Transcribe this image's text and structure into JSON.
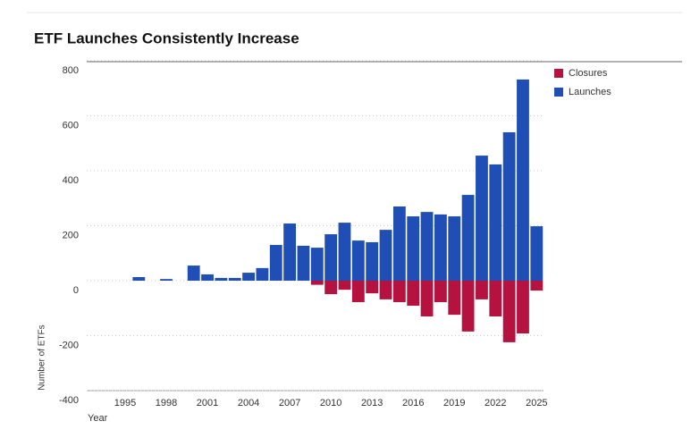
{
  "chart_data": {
    "type": "bar",
    "title": "ETF Launches Consistently Increase",
    "x_label": "Year",
    "y_label": "Number of ETFs",
    "x": [
      1996,
      1997,
      1998,
      1999,
      2000,
      2001,
      2002,
      2003,
      2004,
      2005,
      2006,
      2007,
      2008,
      2009,
      2010,
      2011,
      2012,
      2013,
      2014,
      2015,
      2016,
      2017,
      2018,
      2019,
      2020,
      2021,
      2022,
      2023,
      2024,
      2025
    ],
    "series": [
      {
        "name": "Closures",
        "color": "#b5123f",
        "values": [
          null,
          null,
          null,
          null,
          null,
          null,
          null,
          null,
          null,
          null,
          null,
          null,
          null,
          -15,
          -49,
          -33,
          -78,
          -46,
          -68,
          -78,
          -91,
          -130,
          -78,
          -124,
          -185,
          -68,
          -130,
          -224,
          -192,
          -36
        ]
      },
      {
        "name": "Launches",
        "color": "#1f4fb4",
        "values": [
          13,
          null,
          6,
          null,
          55,
          23,
          10,
          10,
          29,
          46,
          130,
          208,
          127,
          120,
          169,
          211,
          146,
          140,
          185,
          270,
          234,
          250,
          241,
          234,
          312,
          455,
          423,
          540,
          732,
          198
        ]
      }
    ],
    "xlim": [
      1992.2,
      2025.5
    ],
    "xticks": [
      1995,
      1998,
      2001,
      2004,
      2007,
      2010,
      2013,
      2016,
      2019,
      2022,
      2025
    ],
    "ylim": [
      -400,
      800
    ],
    "yticks": [
      -400,
      -200,
      0,
      200,
      400,
      600,
      800
    ],
    "grid": true,
    "legend": "right"
  }
}
